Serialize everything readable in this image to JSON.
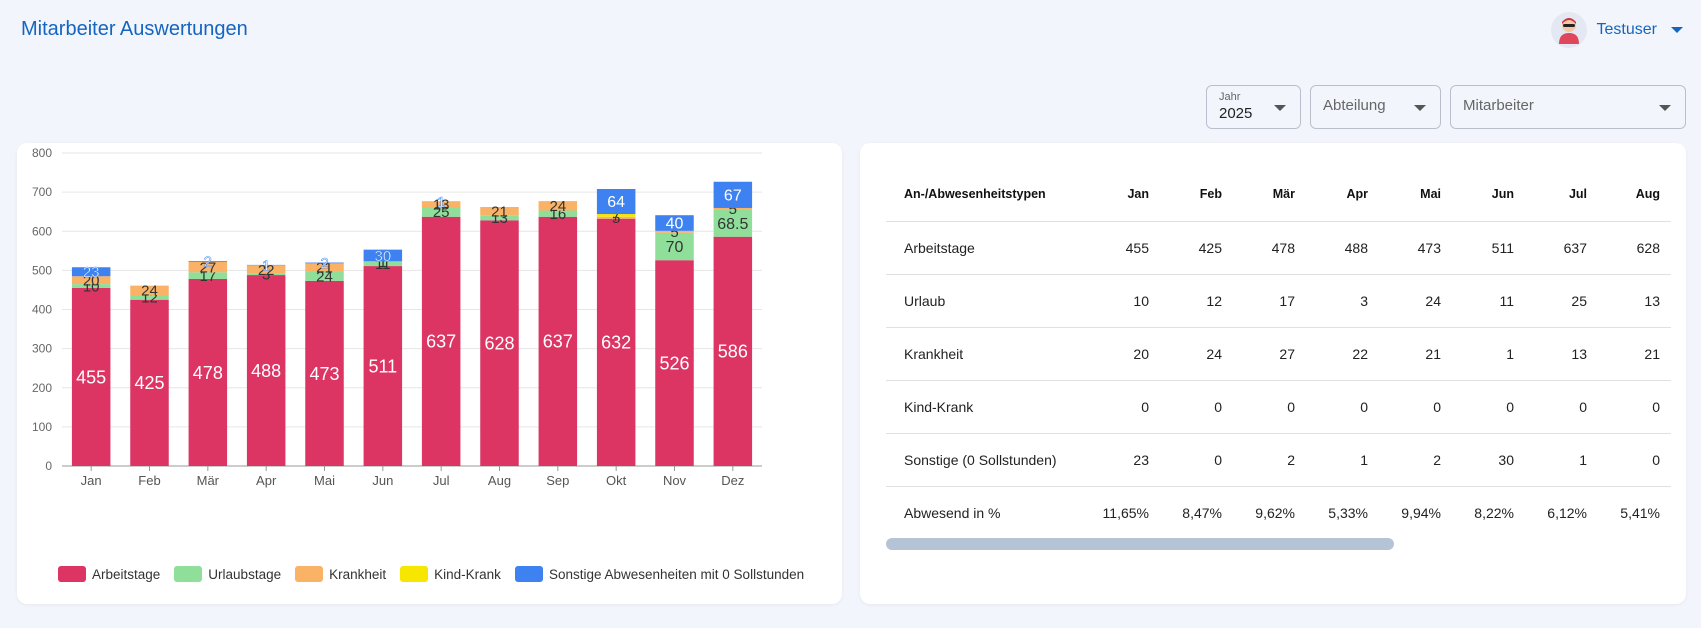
{
  "header": {
    "title": "Mitarbeiter Auswertungen",
    "user_name": "Testuser",
    "avatar_icon": "user-avatar-icon"
  },
  "filters": {
    "year": {
      "label": "Jahr",
      "value": "2025"
    },
    "department": {
      "placeholder": "Abteilung"
    },
    "employee": {
      "placeholder": "Mitarbeiter"
    }
  },
  "chart_data": {
    "type": "bar",
    "stacked": true,
    "categories": [
      "Jan",
      "Feb",
      "Mär",
      "Apr",
      "Mai",
      "Jun",
      "Jul",
      "Aug",
      "Sep",
      "Okt",
      "Nov",
      "Dez"
    ],
    "ylim": [
      0,
      800
    ],
    "yticks": [
      0,
      100,
      200,
      300,
      400,
      500,
      600,
      700,
      800
    ],
    "grid": true,
    "legend_position": "bottom",
    "series": [
      {
        "name": "Arbeitstage",
        "color": "#dc3463",
        "values": [
          455,
          425,
          478,
          488,
          473,
          511,
          637,
          628,
          637,
          632,
          526,
          586
        ]
      },
      {
        "name": "Urlaubstage",
        "color": "#8fdf9a",
        "values": [
          10,
          12,
          17,
          3,
          24,
          11,
          25,
          13,
          16,
          0,
          70,
          68.5
        ]
      },
      {
        "name": "Krankheit",
        "color": "#f9b266",
        "values": [
          20,
          24,
          27,
          22,
          21,
          1,
          13,
          21,
          24,
          5,
          5,
          5
        ]
      },
      {
        "name": "Kind-Krank",
        "color": "#f6e600",
        "values": [
          0,
          0,
          0,
          0,
          0,
          0,
          0,
          0,
          0,
          7,
          0,
          0
        ]
      },
      {
        "name": "Sonstige Abwesenheiten mit 0 Sollstunden",
        "color": "#3d82f0",
        "values": [
          23,
          0,
          2,
          1,
          2,
          30,
          1,
          0,
          0,
          64,
          40,
          67
        ]
      }
    ]
  },
  "table": {
    "columns": [
      "An-/Abwesenheitstypen",
      "Jan",
      "Feb",
      "Mär",
      "Apr",
      "Mai",
      "Jun",
      "Jul",
      "Aug"
    ],
    "rows": [
      {
        "label": "Arbeitstage",
        "values": [
          "455",
          "425",
          "478",
          "488",
          "473",
          "511",
          "637",
          "628"
        ]
      },
      {
        "label": "Urlaub",
        "values": [
          "10",
          "12",
          "17",
          "3",
          "24",
          "11",
          "25",
          "13"
        ]
      },
      {
        "label": "Krankheit",
        "values": [
          "20",
          "24",
          "27",
          "22",
          "21",
          "1",
          "13",
          "21"
        ]
      },
      {
        "label": "Kind-Krank",
        "values": [
          "0",
          "0",
          "0",
          "0",
          "0",
          "0",
          "0",
          "0"
        ]
      },
      {
        "label": "Sonstige (0 Sollstunden)",
        "values": [
          "23",
          "0",
          "2",
          "1",
          "2",
          "30",
          "1",
          "0"
        ]
      },
      {
        "label": "Abwesend in %",
        "values": [
          "11,65%",
          "8,47%",
          "9,62%",
          "5,33%",
          "9,94%",
          "8,22%",
          "6,12%",
          "5,41%"
        ]
      }
    ],
    "scroll_position": 0
  }
}
